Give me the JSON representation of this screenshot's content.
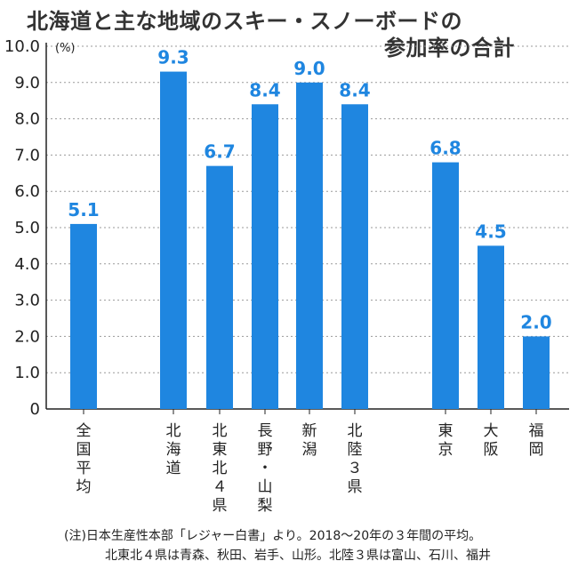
{
  "title_line1": "北海道と主な地域のスキー・スノーボードの",
  "title_line2": "参加率の合計",
  "footnote_line1": "(注)日本生産性本部「レジャー白書」より。2018～20年の３年間の平均。",
  "footnote_line2": "北東北４県は青森、秋田、岩手、山形。北陸３県は富山、石川、福井",
  "chart_data": {
    "type": "bar",
    "title": "北海道と主な地域のスキー・スノーボードの参加率の合計",
    "ylabel": "(%)",
    "xlabel": "",
    "ylim": [
      0,
      10
    ],
    "yticks": [
      "0",
      "1.0",
      "2.0",
      "3.0",
      "4.0",
      "5.0",
      "6.0",
      "7.0",
      "8.0",
      "9.0",
      "10.0"
    ],
    "categories": [
      "全国平均",
      "北海道",
      "北東北４県",
      "長野・山梨",
      "新潟",
      "北陸３県",
      "東京",
      "大阪",
      "福岡"
    ],
    "values": [
      5.1,
      9.3,
      6.7,
      8.4,
      9.0,
      8.4,
      6.8,
      4.5,
      2.0
    ],
    "value_labels": [
      "5.1",
      "9.3",
      "6.7",
      "8.4",
      "9.0",
      "8.4",
      "6.8",
      "4.5",
      "2.0"
    ],
    "bar_color": "#1f86e0",
    "grid": true
  }
}
